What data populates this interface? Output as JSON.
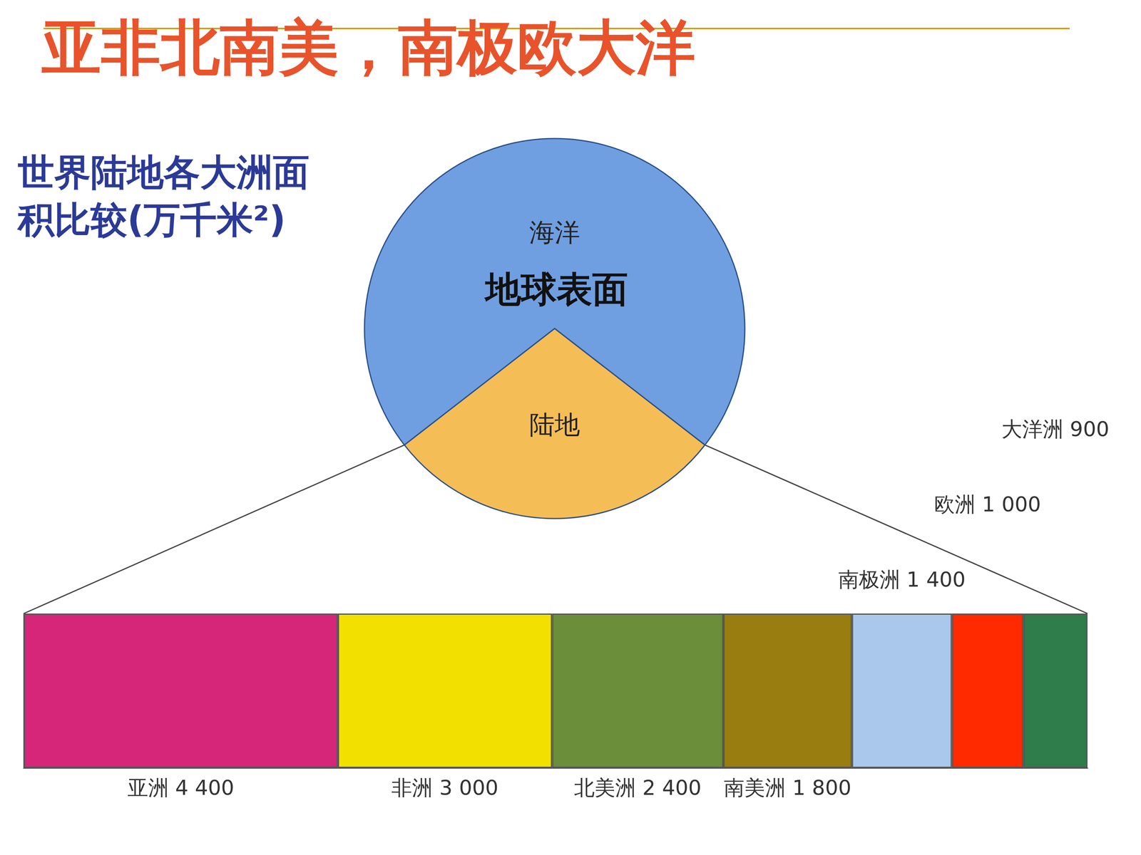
{
  "header": {
    "title": "亚非北南美，南极欧大洋"
  },
  "chart_data": [
    {
      "type": "pie",
      "title": "地球表面",
      "categories": [
        "海洋",
        "陆地"
      ],
      "values": [
        71,
        29
      ],
      "colors": [
        "#6f9fe0",
        "#f5bd55"
      ]
    },
    {
      "type": "bar",
      "title": "世界陆地各大洲面积比较(万千米²)",
      "orientation": "horizontal",
      "stacked": true,
      "data_labels": true,
      "tick_labels": false,
      "grid": false,
      "categories": [
        null
      ],
      "xlim": [
        0,
        14900
      ],
      "series": [
        {
          "name": "亚洲",
          "color": "#d6267a",
          "values": [
            4400
          ],
          "value_labels": [
            "4 400"
          ]
        },
        {
          "name": "非洲",
          "color": "#f2e000",
          "values": [
            3000
          ],
          "value_labels": [
            "3 000"
          ]
        },
        {
          "name": "北美洲",
          "color": "#6b8e3a",
          "values": [
            2400
          ],
          "value_labels": [
            "2 400"
          ]
        },
        {
          "name": "南美洲",
          "color": "#9a7d10",
          "values": [
            1800
          ],
          "value_labels": [
            "1 800"
          ]
        },
        {
          "name": "南极洲",
          "color": "#aac8ec",
          "values": [
            1400
          ],
          "value_labels": [
            "1 400"
          ]
        },
        {
          "name": "欧洲",
          "color": "#ff2a00",
          "values": [
            1000
          ],
          "value_labels": [
            "1 000"
          ]
        },
        {
          "name": "大洋洲",
          "color": "#2e7d4a",
          "values": [
            900
          ],
          "value_labels": [
            "900"
          ]
        }
      ]
    }
  ]
}
